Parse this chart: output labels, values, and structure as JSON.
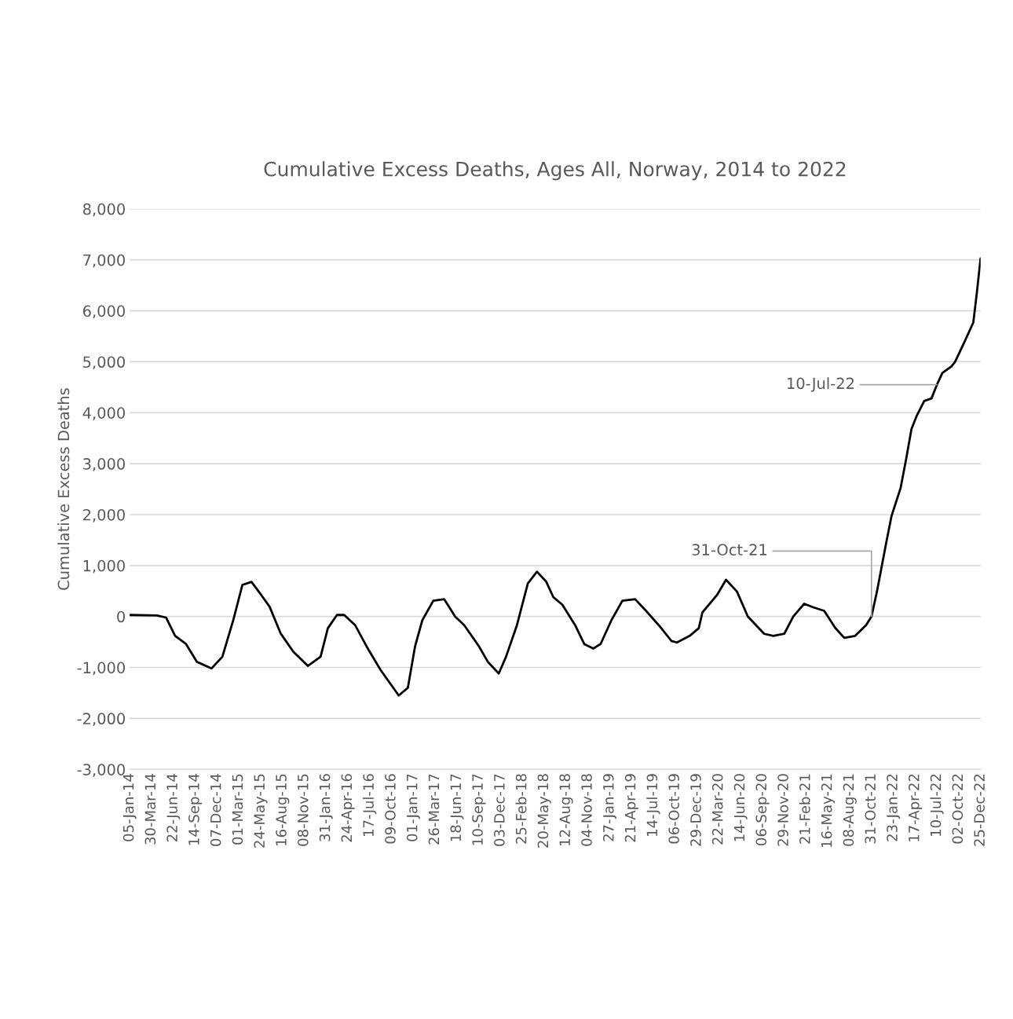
{
  "chart_data": {
    "type": "line",
    "title": "Cumulative Excess Deaths, Ages All, Norway, 2014 to 2022",
    "ylabel": "Cumulative Excess Deaths",
    "x": [
      "2014-01-05",
      "2014-04-20",
      "2014-05-25",
      "2014-06-29",
      "2014-08-10",
      "2014-09-21",
      "2014-11-16",
      "2014-12-28",
      "2015-02-08",
      "2015-03-15",
      "2015-04-19",
      "2015-05-24",
      "2015-06-28",
      "2015-08-09",
      "2015-09-27",
      "2015-11-22",
      "2016-01-10",
      "2016-02-07",
      "2016-03-13",
      "2016-04-10",
      "2016-05-22",
      "2016-07-10",
      "2016-08-28",
      "2016-11-06",
      "2016-12-11",
      "2017-01-08",
      "2017-02-05",
      "2017-03-19",
      "2017-04-30",
      "2017-06-11",
      "2017-07-16",
      "2017-09-10",
      "2017-10-15",
      "2017-11-26",
      "2017-12-24",
      "2018-02-04",
      "2018-03-18",
      "2018-04-22",
      "2018-05-27",
      "2018-06-24",
      "2018-07-29",
      "2018-09-16",
      "2018-10-21",
      "2018-11-25",
      "2018-12-23",
      "2019-02-03",
      "2019-03-17",
      "2019-05-05",
      "2019-06-16",
      "2019-08-04",
      "2019-09-22",
      "2019-10-13",
      "2019-12-01",
      "2020-01-05",
      "2020-01-19",
      "2020-03-15",
      "2020-04-19",
      "2020-05-31",
      "2020-07-12",
      "2020-09-13",
      "2020-10-18",
      "2020-11-29",
      "2021-01-03",
      "2021-02-14",
      "2021-03-21",
      "2021-05-02",
      "2021-06-13",
      "2021-07-18",
      "2021-08-29",
      "2021-10-10",
      "2021-10-31",
      "2021-11-21",
      "2021-12-26",
      "2022-01-16",
      "2022-02-20",
      "2022-03-13",
      "2022-04-03",
      "2022-04-24",
      "2022-05-22",
      "2022-06-19",
      "2022-07-10",
      "2022-07-31",
      "2022-09-04",
      "2022-09-18",
      "2022-10-23",
      "2022-11-27",
      "2022-12-11",
      "2022-12-25"
    ],
    "series": [
      {
        "color": "#000000",
        "values": [
          30,
          20,
          -20,
          -380,
          -540,
          -890,
          -1020,
          -790,
          -70,
          620,
          680,
          440,
          190,
          -330,
          -690,
          -970,
          -790,
          -230,
          30,
          30,
          -170,
          -630,
          -1050,
          -1550,
          -1400,
          -580,
          -70,
          310,
          340,
          0,
          -170,
          -580,
          -890,
          -1120,
          -790,
          -170,
          650,
          880,
          690,
          380,
          230,
          -170,
          -540,
          -630,
          -540,
          -70,
          310,
          340,
          110,
          -170,
          -480,
          -510,
          -380,
          -230,
          80,
          420,
          720,
          490,
          0,
          -340,
          -380,
          -340,
          0,
          250,
          180,
          110,
          -220,
          -420,
          -380,
          -170,
          0,
          490,
          1430,
          1970,
          2520,
          3080,
          3680,
          3950,
          4230,
          4280,
          4550,
          4780,
          4910,
          5000,
          5380,
          5770,
          6370,
          7030
        ]
      }
    ],
    "xlim": [
      "2014-01-05",
      "2022-12-25"
    ],
    "xticks": [
      {
        "value": "2014-01-05",
        "label": "05-Jan-14"
      },
      {
        "value": "2014-03-30",
        "label": "30-Mar-14"
      },
      {
        "value": "2014-06-22",
        "label": "22-Jun-14"
      },
      {
        "value": "2014-09-14",
        "label": "14-Sep-14"
      },
      {
        "value": "2014-12-07",
        "label": "07-Dec-14"
      },
      {
        "value": "2015-03-01",
        "label": "01-Mar-15"
      },
      {
        "value": "2015-05-24",
        "label": "24-May-15"
      },
      {
        "value": "2015-08-16",
        "label": "16-Aug-15"
      },
      {
        "value": "2015-11-08",
        "label": "08-Nov-15"
      },
      {
        "value": "2016-01-31",
        "label": "31-Jan-16"
      },
      {
        "value": "2016-04-24",
        "label": "24-Apr-16"
      },
      {
        "value": "2016-07-17",
        "label": "17-Jul-16"
      },
      {
        "value": "2016-10-09",
        "label": "09-Oct-16"
      },
      {
        "value": "2017-01-01",
        "label": "01-Jan-17"
      },
      {
        "value": "2017-03-26",
        "label": "26-Mar-17"
      },
      {
        "value": "2017-06-18",
        "label": "18-Jun-17"
      },
      {
        "value": "2017-09-10",
        "label": "10-Sep-17"
      },
      {
        "value": "2017-12-03",
        "label": "03-Dec-17"
      },
      {
        "value": "2018-02-25",
        "label": "25-Feb-18"
      },
      {
        "value": "2018-05-20",
        "label": "20-May-18"
      },
      {
        "value": "2018-08-12",
        "label": "12-Aug-18"
      },
      {
        "value": "2018-11-04",
        "label": "04-Nov-18"
      },
      {
        "value": "2019-01-27",
        "label": "27-Jan-19"
      },
      {
        "value": "2019-04-21",
        "label": "21-Apr-19"
      },
      {
        "value": "2019-07-14",
        "label": "14-Jul-19"
      },
      {
        "value": "2019-10-06",
        "label": "06-Oct-19"
      },
      {
        "value": "2019-12-29",
        "label": "29-Dec-19"
      },
      {
        "value": "2020-03-22",
        "label": "22-Mar-20"
      },
      {
        "value": "2020-06-14",
        "label": "14-Jun-20"
      },
      {
        "value": "2020-09-06",
        "label": "06-Sep-20"
      },
      {
        "value": "2020-11-29",
        "label": "29-Nov-20"
      },
      {
        "value": "2021-02-21",
        "label": "21-Feb-21"
      },
      {
        "value": "2021-05-16",
        "label": "16-May-21"
      },
      {
        "value": "2021-08-08",
        "label": "08-Aug-21"
      },
      {
        "value": "2021-10-31",
        "label": "31-Oct-21"
      },
      {
        "value": "2022-01-23",
        "label": "23-Jan-22"
      },
      {
        "value": "2022-04-17",
        "label": "17-Apr-22"
      },
      {
        "value": "2022-07-10",
        "label": "10-Jul-22"
      },
      {
        "value": "2022-10-02",
        "label": "02-Oct-22"
      },
      {
        "value": "2022-12-25",
        "label": "25-Dec-22"
      }
    ],
    "ylim": [
      -3000,
      8000
    ],
    "yticks": [
      {
        "value": -3000,
        "label": "-3,000"
      },
      {
        "value": -2000,
        "label": "-2,000"
      },
      {
        "value": -1000,
        "label": "-1,000"
      },
      0,
      {
        "value": 1000,
        "label": "1,000"
      },
      {
        "value": 2000,
        "label": "2,000"
      },
      {
        "value": 3000,
        "label": "3,000"
      },
      {
        "value": 4000,
        "label": "4,000"
      },
      {
        "value": 5000,
        "label": "5,000"
      },
      {
        "value": 6000,
        "label": "6,000"
      },
      {
        "value": 7000,
        "label": "7,000"
      },
      {
        "value": 8000,
        "label": "8,000"
      }
    ],
    "grid": "y",
    "annotations": [
      {
        "text": "31-Oct-21",
        "x": "2021-10-31",
        "y": 0
      },
      {
        "text": "10-Jul-22",
        "x": "2022-07-10",
        "y": 4550
      }
    ]
  }
}
